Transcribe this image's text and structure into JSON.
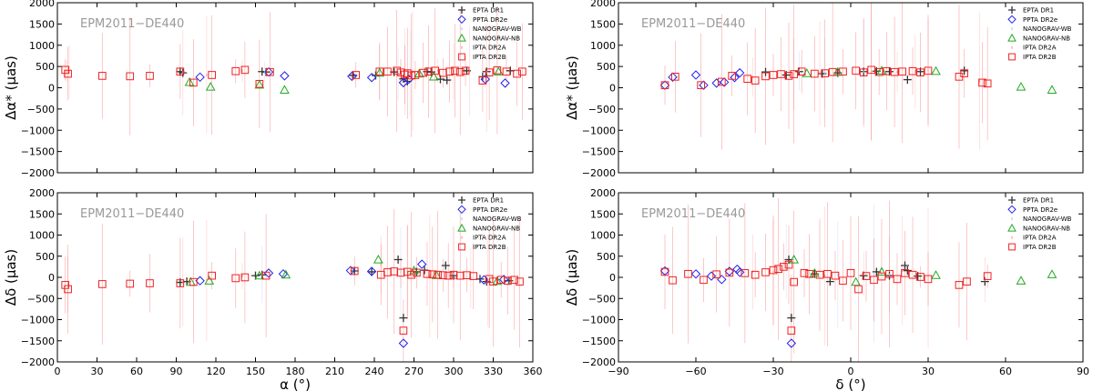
{
  "chart_data": [
    {
      "type": "scatter",
      "panel": "top-left",
      "title": "",
      "annotation": "EPM2011−DE440",
      "xlabel": "α (°)",
      "ylabel": "Δα* (μas)",
      "xlim": [
        0,
        360
      ],
      "ylim": [
        -2000,
        2000
      ],
      "xticks": [
        "0",
        "30",
        "60",
        "90",
        "120",
        "150",
        "180",
        "210",
        "240",
        "270",
        "300",
        "330",
        "360"
      ],
      "yticks": [
        "2000",
        "1500",
        "1000",
        "500",
        "0",
        "−500",
        "−1000",
        "−1500",
        "−2000"
      ],
      "legend": [
        "EPTA DR1",
        "PPTA DR2e",
        "NANOGRAV-WB",
        "NANOGRAV-NB",
        "IPTA DR2A",
        "IPTA DR2B"
      ],
      "legend_position": "top-right",
      "series": [
        {
          "name": "EPTA DR1",
          "x": [
            93,
            95,
            155,
            158,
            224,
            241,
            255,
            262,
            265,
            280,
            283,
            290,
            295,
            310,
            322,
            325,
            343
          ],
          "y": [
            380,
            350,
            380,
            370,
            290,
            290,
            370,
            210,
            150,
            380,
            370,
            200,
            180,
            400,
            260,
            380,
            400
          ]
        },
        {
          "name": "PPTA DR2e",
          "x": [
            108,
            160,
            172,
            223,
            238,
            262,
            266,
            324,
            339
          ],
          "y": [
            250,
            370,
            280,
            270,
            240,
            120,
            200,
            200,
            110
          ]
        },
        {
          "name": "NANOGRAV-WB",
          "x": [
            157,
            258,
            267
          ],
          "y": [
            360,
            330,
            340
          ]
        },
        {
          "name": "NANOGRAV-NB",
          "x": [
            100,
            116,
            153,
            172,
            244,
            274,
            285,
            334
          ],
          "y": [
            130,
            20,
            70,
            -50,
            350,
            330,
            260,
            380
          ]
        },
        {
          "name": "IPTA DR2A",
          "x": [
            7,
            9,
            95,
            113,
            140,
            244,
            263,
            269,
            288,
            300,
            312,
            325
          ],
          "y": [
            390,
            370,
            360,
            300,
            400,
            370,
            380,
            390,
            400,
            380,
            390,
            370
          ]
        },
        {
          "name": "IPTA DR2B",
          "x": [
            6,
            8,
            34,
            55,
            70,
            93,
            103,
            117,
            135,
            142,
            153,
            161,
            226,
            244,
            250,
            257,
            260,
            263,
            265,
            268,
            271,
            277,
            281,
            286,
            292,
            297,
            301,
            305,
            309,
            322,
            327,
            333,
            340,
            348,
            352
          ],
          "y": [
            420,
            330,
            280,
            270,
            280,
            380,
            120,
            300,
            390,
            420,
            90,
            370,
            300,
            380,
            380,
            400,
            360,
            310,
            340,
            290,
            300,
            350,
            380,
            400,
            350,
            380,
            400,
            370,
            400,
            170,
            360,
            410,
            380,
            330,
            380
          ]
        }
      ]
    },
    {
      "type": "scatter",
      "panel": "top-right",
      "title": "",
      "annotation": "EPM2011−DE440",
      "xlabel": "δ (°)",
      "ylabel": "Δα* (μas)",
      "xlim": [
        -90,
        90
      ],
      "ylim": [
        -2000,
        2000
      ],
      "xticks": [
        "−90",
        "−60",
        "−30",
        "0",
        "30",
        "60",
        "90"
      ],
      "yticks": [
        "2000",
        "1500",
        "1000",
        "500",
        "0",
        "−500",
        "−1000",
        "−1500",
        "−2000"
      ],
      "legend": [
        "EPTA DR1",
        "PPTA DR2e",
        "NANOGRAV-WB",
        "NANOGRAV-NB",
        "IPTA DR2A",
        "IPTA DR2B"
      ],
      "legend_position": "top-right",
      "series": [
        {
          "name": "EPTA DR1",
          "x": [
            -33,
            -25,
            -20,
            -11,
            -5,
            5,
            10,
            15,
            22,
            27,
            44
          ],
          "y": [
            370,
            300,
            380,
            330,
            350,
            380,
            390,
            380,
            190,
            380,
            400
          ]
        },
        {
          "name": "PPTA DR2e",
          "x": [
            -72,
            -69,
            -60,
            -57,
            -52,
            -49,
            -45,
            -43
          ],
          "y": [
            60,
            250,
            300,
            60,
            110,
            130,
            240,
            350
          ]
        },
        {
          "name": "NANOGRAV-WB",
          "x": [
            -20,
            -10,
            5
          ],
          "y": [
            400,
            340,
            380
          ]
        },
        {
          "name": "NANOGRAV-NB",
          "x": [
            -17,
            -5,
            12,
            33,
            66,
            78
          ],
          "y": [
            340,
            370,
            400,
            390,
            20,
            -50
          ]
        },
        {
          "name": "IPTA DR2A",
          "x": [
            -38,
            -22,
            -12,
            8,
            18,
            25,
            30,
            50
          ],
          "y": [
            250,
            320,
            350,
            380,
            370,
            380,
            400,
            160
          ]
        },
        {
          "name": "IPTA DR2B",
          "x": [
            -72,
            -68,
            -58,
            -50,
            -46,
            -40,
            -37,
            -33,
            -30,
            -27,
            -24,
            -22,
            -19,
            -14,
            -10,
            -7,
            -3,
            2,
            5,
            8,
            11,
            14,
            17,
            20,
            24,
            27,
            30,
            42,
            44,
            51,
            53
          ],
          "y": [
            60,
            260,
            60,
            140,
            280,
            210,
            170,
            270,
            300,
            320,
            280,
            320,
            380,
            330,
            340,
            370,
            380,
            400,
            360,
            420,
            370,
            390,
            370,
            380,
            390,
            360,
            400,
            260,
            340,
            120,
            100
          ]
        }
      ]
    },
    {
      "type": "scatter",
      "panel": "bottom-left",
      "title": "",
      "annotation": "EPM2011−DE440",
      "xlabel": "α (°)",
      "ylabel": "Δδ (μas)",
      "xlim": [
        0,
        360
      ],
      "ylim": [
        -2000,
        2000
      ],
      "xticks": [
        "0",
        "30",
        "60",
        "90",
        "120",
        "150",
        "180",
        "210",
        "240",
        "270",
        "300",
        "330",
        "360"
      ],
      "yticks": [
        "2000",
        "1500",
        "1000",
        "500",
        "0",
        "−500",
        "−1000",
        "−1500",
        "−2000"
      ],
      "legend": [
        "EPTA DR1",
        "PPTA DR2e",
        "NANOGRAV-WB",
        "NANOGRAV-NB",
        "IPTA DR2A",
        "IPTA DR2B"
      ],
      "legend_position": "top-right",
      "series": [
        {
          "name": "EPTA DR1",
          "x": [
            93,
            98,
            150,
            155,
            225,
            238,
            258,
            262,
            272,
            278,
            294,
            300,
            320,
            325,
            342
          ],
          "y": [
            -120,
            -100,
            40,
            60,
            150,
            130,
            420,
            -960,
            130,
            170,
            280,
            40,
            -40,
            -100,
            -80
          ]
        },
        {
          "name": "PPTA DR2e",
          "x": [
            108,
            160,
            171,
            222,
            238,
            262,
            276,
            323,
            338
          ],
          "y": [
            -80,
            100,
            80,
            160,
            140,
            -1560,
            310,
            -60,
            -50
          ]
        },
        {
          "name": "NANOGRAV-WB",
          "x": [
            155,
            260
          ],
          "y": [
            60,
            130
          ]
        },
        {
          "name": "NANOGRAV-NB",
          "x": [
            101,
            115,
            153,
            173,
            243,
            270,
            287,
            333
          ],
          "y": [
            -110,
            -80,
            40,
            60,
            420,
            160,
            50,
            -90
          ]
        },
        {
          "name": "IPTA DR2A",
          "x": [
            8,
            95,
            113,
            140,
            245,
            265,
            282,
            300,
            313,
            326
          ],
          "y": [
            -160,
            -110,
            -70,
            30,
            300,
            140,
            30,
            80,
            -20,
            -70
          ]
        },
        {
          "name": "IPTA DR2B",
          "x": [
            6,
            8,
            34,
            55,
            70,
            93,
            103,
            117,
            135,
            142,
            158,
            225,
            245,
            250,
            255,
            260,
            262,
            265,
            268,
            272,
            280,
            284,
            288,
            292,
            296,
            300,
            305,
            310,
            315,
            327,
            330,
            336,
            341,
            346,
            350
          ],
          "y": [
            -180,
            -280,
            -160,
            -150,
            -140,
            -140,
            -110,
            40,
            -20,
            0,
            40,
            150,
            60,
            120,
            140,
            110,
            -1260,
            130,
            60,
            110,
            80,
            70,
            60,
            50,
            40,
            60,
            40,
            50,
            30,
            -40,
            -100,
            -60,
            -80,
            -60,
            -100
          ]
        }
      ]
    },
    {
      "type": "scatter",
      "panel": "bottom-right",
      "title": "",
      "annotation": "EPM2011−DE440",
      "xlabel": "δ (°)",
      "ylabel": "Δδ (μas)",
      "xlim": [
        -90,
        90
      ],
      "ylim": [
        -2000,
        2000
      ],
      "xticks": [
        "−90",
        "−60",
        "−30",
        "0",
        "30",
        "60",
        "90"
      ],
      "yticks": [
        "2000",
        "1500",
        "1000",
        "500",
        "0",
        "−500",
        "−1000",
        "−1500",
        "−2000"
      ],
      "legend": [
        "EPTA DR1",
        "PPTA DR2e",
        "NANOGRAV-WB",
        "NANOGRAV-NB",
        "IPTA DR2A",
        "IPTA DR2B"
      ],
      "legend_position": "top-right",
      "series": [
        {
          "name": "EPTA DR1",
          "x": [
            -24,
            -23,
            -14,
            -8,
            5,
            10,
            15,
            21,
            22,
            26,
            52
          ],
          "y": [
            420,
            -960,
            80,
            -100,
            40,
            130,
            40,
            280,
            160,
            30,
            -100
          ]
        },
        {
          "name": "PPTA DR2e",
          "x": [
            -72,
            -60,
            -54,
            -50,
            -47,
            -44,
            -43,
            -23
          ],
          "y": [
            150,
            80,
            30,
            -50,
            140,
            190,
            120,
            -1560
          ]
        },
        {
          "name": "NANOGRAV-WB",
          "x": [
            -25,
            -5,
            9
          ],
          "y": [
            380,
            60,
            100
          ]
        },
        {
          "name": "NANOGRAV-NB",
          "x": [
            -22,
            -14,
            2,
            12,
            33,
            66,
            78
          ],
          "y": [
            420,
            100,
            -110,
            130,
            50,
            -80,
            70
          ]
        },
        {
          "name": "IPTA DR2A",
          "x": [
            -38,
            -30,
            -10,
            5,
            15,
            20,
            30,
            52
          ],
          "y": [
            130,
            120,
            40,
            80,
            60,
            160,
            -20,
            -60
          ]
        },
        {
          "name": "IPTA DR2B",
          "x": [
            -72,
            -69,
            -63,
            -57,
            -52,
            -47,
            -41,
            -37,
            -33,
            -30,
            -28,
            -26,
            -24,
            -23,
            -22,
            -18,
            -16,
            -12,
            -9,
            -6,
            -3,
            0,
            3,
            6,
            9,
            12,
            15,
            18,
            21,
            24,
            27,
            30,
            42,
            45,
            53
          ],
          "y": [
            130,
            -70,
            80,
            -60,
            70,
            110,
            100,
            60,
            120,
            170,
            200,
            250,
            300,
            -1260,
            -110,
            100,
            80,
            60,
            80,
            40,
            -80,
            100,
            -280,
            30,
            -60,
            20,
            80,
            -40,
            100,
            60,
            10,
            -40,
            -180,
            -100,
            30
          ]
        }
      ]
    }
  ]
}
